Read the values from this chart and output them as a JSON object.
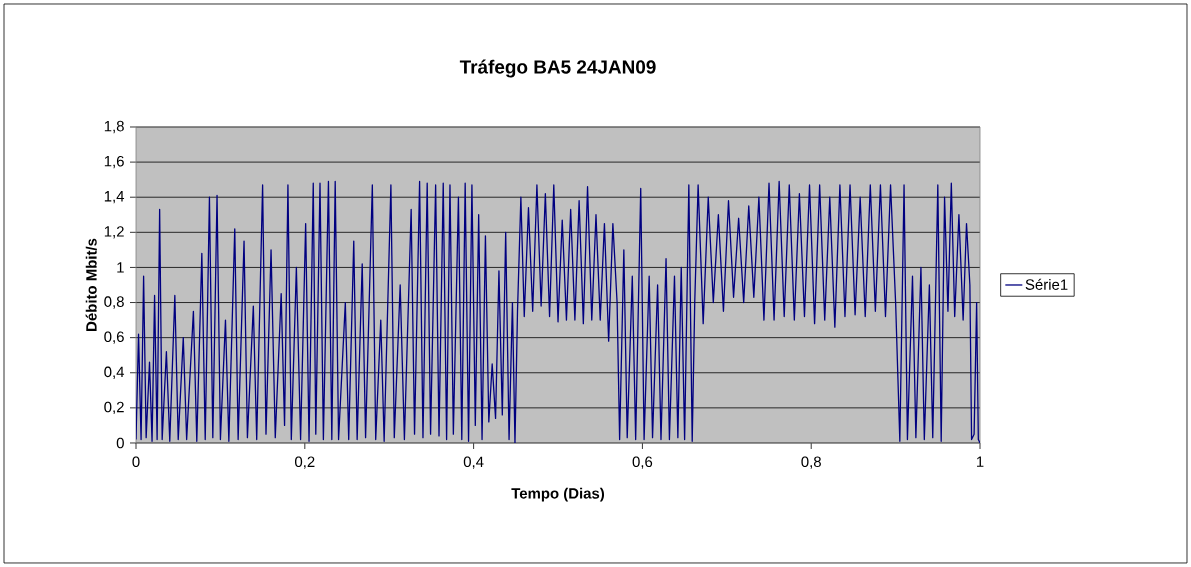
{
  "chart_data": {
    "type": "line",
    "title": "Tráfego BA5 24JAN09",
    "xlabel": "Tempo (Dias)",
    "ylabel": "Débito Mbit/s",
    "x": [
      0.0,
      0.003,
      0.006,
      0.009,
      0.012,
      0.016,
      0.019,
      0.022,
      0.025,
      0.028,
      0.031,
      0.036,
      0.04,
      0.046,
      0.05,
      0.056,
      0.06,
      0.068,
      0.072,
      0.078,
      0.082,
      0.087,
      0.091,
      0.096,
      0.1,
      0.106,
      0.11,
      0.117,
      0.121,
      0.128,
      0.132,
      0.139,
      0.143,
      0.15,
      0.154,
      0.16,
      0.165,
      0.172,
      0.176,
      0.18,
      0.184,
      0.19,
      0.195,
      0.201,
      0.205,
      0.21,
      0.213,
      0.218,
      0.222,
      0.228,
      0.232,
      0.236,
      0.24,
      0.248,
      0.252,
      0.258,
      0.262,
      0.268,
      0.272,
      0.28,
      0.284,
      0.29,
      0.294,
      0.302,
      0.306,
      0.313,
      0.318,
      0.326,
      0.33,
      0.336,
      0.34,
      0.345,
      0.349,
      0.355,
      0.359,
      0.364,
      0.368,
      0.372,
      0.376,
      0.382,
      0.386,
      0.39,
      0.394,
      0.398,
      0.402,
      0.406,
      0.41,
      0.414,
      0.418,
      0.422,
      0.426,
      0.43,
      0.434,
      0.438,
      0.442,
      0.446,
      0.449,
      0.452,
      0.456,
      0.46,
      0.465,
      0.47,
      0.475,
      0.48,
      0.485,
      0.49,
      0.495,
      0.5,
      0.505,
      0.51,
      0.515,
      0.52,
      0.525,
      0.53,
      0.535,
      0.54,
      0.545,
      0.55,
      0.555,
      0.56,
      0.565,
      0.57,
      0.573,
      0.578,
      0.582,
      0.588,
      0.592,
      0.598,
      0.602,
      0.608,
      0.612,
      0.618,
      0.622,
      0.628,
      0.632,
      0.638,
      0.642,
      0.646,
      0.65,
      0.655,
      0.659,
      0.662,
      0.666,
      0.672,
      0.678,
      0.684,
      0.69,
      0.696,
      0.702,
      0.708,
      0.714,
      0.72,
      0.726,
      0.732,
      0.738,
      0.744,
      0.75,
      0.756,
      0.762,
      0.768,
      0.774,
      0.78,
      0.786,
      0.792,
      0.798,
      0.804,
      0.81,
      0.816,
      0.822,
      0.828,
      0.834,
      0.84,
      0.846,
      0.852,
      0.858,
      0.864,
      0.87,
      0.876,
      0.882,
      0.888,
      0.894,
      0.9,
      0.905,
      0.91,
      0.914,
      0.92,
      0.924,
      0.93,
      0.934,
      0.94,
      0.944,
      0.95,
      0.954,
      0.958,
      0.962,
      0.966,
      0.97,
      0.975,
      0.98,
      0.984,
      0.988,
      0.99,
      0.993,
      0.996,
      0.998,
      1.0
    ],
    "series": [
      {
        "name": "Série1",
        "color": "#000080",
        "values": [
          0.02,
          0.62,
          0.02,
          0.95,
          0.03,
          0.46,
          0.01,
          0.84,
          0.02,
          1.33,
          0.02,
          0.52,
          0.01,
          0.84,
          0.02,
          0.6,
          0.02,
          0.75,
          0.01,
          1.08,
          0.02,
          1.4,
          0.03,
          1.41,
          0.02,
          0.7,
          0.01,
          1.22,
          0.02,
          1.15,
          0.03,
          0.78,
          0.02,
          1.47,
          0.05,
          1.1,
          0.03,
          0.85,
          0.1,
          1.47,
          0.02,
          1.0,
          0.02,
          1.25,
          0.01,
          1.48,
          0.05,
          1.48,
          0.02,
          1.49,
          0.02,
          1.49,
          0.02,
          0.8,
          0.02,
          1.15,
          0.02,
          1.02,
          0.03,
          1.47,
          0.02,
          0.7,
          0.01,
          1.47,
          0.03,
          0.9,
          0.02,
          1.33,
          0.05,
          1.49,
          0.03,
          1.48,
          0.05,
          1.47,
          0.04,
          1.48,
          0.02,
          1.47,
          0.05,
          1.4,
          0.02,
          1.48,
          0.01,
          1.47,
          0.1,
          1.3,
          0.02,
          1.18,
          0.12,
          0.45,
          0.14,
          0.98,
          0.16,
          1.2,
          0.02,
          0.8,
          0.0,
          0.75,
          1.4,
          0.72,
          1.34,
          0.75,
          1.47,
          0.78,
          1.42,
          0.72,
          1.47,
          0.69,
          1.27,
          0.7,
          1.33,
          0.7,
          1.38,
          0.68,
          1.46,
          0.7,
          1.3,
          0.7,
          1.25,
          0.58,
          1.25,
          0.8,
          0.02,
          1.1,
          0.03,
          0.95,
          0.02,
          1.45,
          0.02,
          0.95,
          0.03,
          0.9,
          0.02,
          1.05,
          0.02,
          0.95,
          0.03,
          1.0,
          0.02,
          1.47,
          0.01,
          0.8,
          1.47,
          0.68,
          1.4,
          0.8,
          1.3,
          0.75,
          1.38,
          0.83,
          1.28,
          0.8,
          1.35,
          0.83,
          1.4,
          0.7,
          1.48,
          0.7,
          1.49,
          0.72,
          1.47,
          0.7,
          1.42,
          0.72,
          1.47,
          0.68,
          1.47,
          0.7,
          1.4,
          0.66,
          1.47,
          0.72,
          1.47,
          0.73,
          1.4,
          0.72,
          1.47,
          0.75,
          1.47,
          0.72,
          1.47,
          0.8,
          0.01,
          1.47,
          0.02,
          0.95,
          0.03,
          1.0,
          0.02,
          0.9,
          0.03,
          1.47,
          0.01,
          1.4,
          0.75,
          1.48,
          0.72,
          1.3,
          0.7,
          1.25,
          0.9,
          0.02,
          0.05,
          0.8,
          0.02,
          0.0
        ]
      }
    ],
    "xlim": [
      0,
      1
    ],
    "ylim": [
      0,
      1.8
    ],
    "xticks": [
      0,
      {
        "value": 0.2,
        "label": "0,2"
      },
      {
        "value": 0.4,
        "label": "0,4"
      },
      {
        "value": 0.6,
        "label": "0,6"
      },
      {
        "value": 0.8,
        "label": "0,8"
      },
      1
    ],
    "yticks": [
      0,
      {
        "value": 0.2,
        "label": "0,2"
      },
      {
        "value": 0.4,
        "label": "0,4"
      },
      {
        "value": 0.6,
        "label": "0,6"
      },
      {
        "value": 0.8,
        "label": "0,8"
      },
      1,
      {
        "value": 1.2,
        "label": "1,2"
      },
      {
        "value": 1.4,
        "label": "1,4"
      },
      {
        "value": 1.6,
        "label": "1,6"
      },
      {
        "value": 1.8,
        "label": "1,8"
      }
    ],
    "grid": "y",
    "legend": "right",
    "marker": "none",
    "line_style": "solid"
  }
}
